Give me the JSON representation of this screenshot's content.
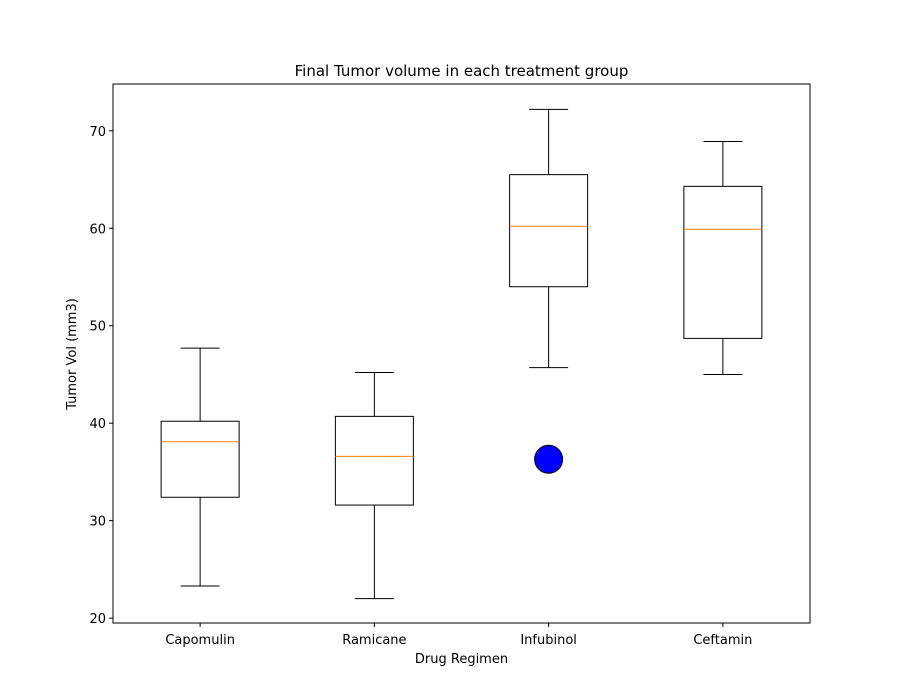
{
  "chart_data": {
    "type": "box",
    "title": "Final Tumor volume in each treatment group",
    "xlabel": "Drug Regimen",
    "ylabel": "Tumor Vol (mm3)",
    "ylim": [
      19.5,
      74.8
    ],
    "yticks": [
      20,
      30,
      40,
      50,
      60,
      70
    ],
    "grid": false,
    "categories": [
      "Capomulin",
      "Ramicane",
      "Infubinol",
      "Ceftamin"
    ],
    "boxes": [
      {
        "category": "Capomulin",
        "whisker_low": 23.3,
        "q1": 32.4,
        "median": 38.1,
        "q3": 40.2,
        "whisker_high": 47.7,
        "outliers": []
      },
      {
        "category": "Ramicane",
        "whisker_low": 22.0,
        "q1": 31.6,
        "median": 36.6,
        "q3": 40.7,
        "whisker_high": 45.2,
        "outliers": []
      },
      {
        "category": "Infubinol",
        "whisker_low": 45.7,
        "q1": 54.0,
        "median": 60.2,
        "q3": 65.5,
        "whisker_high": 72.2,
        "outliers": [
          36.3
        ]
      },
      {
        "category": "Ceftamin",
        "whisker_low": 45.0,
        "q1": 48.7,
        "median": 59.9,
        "q3": 64.3,
        "whisker_high": 68.9,
        "outliers": []
      }
    ],
    "colors": {
      "box": "#000000",
      "median": "#ff7f0e",
      "outlier_fill": "#0000ff",
      "outlier_edge": "#000000"
    }
  }
}
